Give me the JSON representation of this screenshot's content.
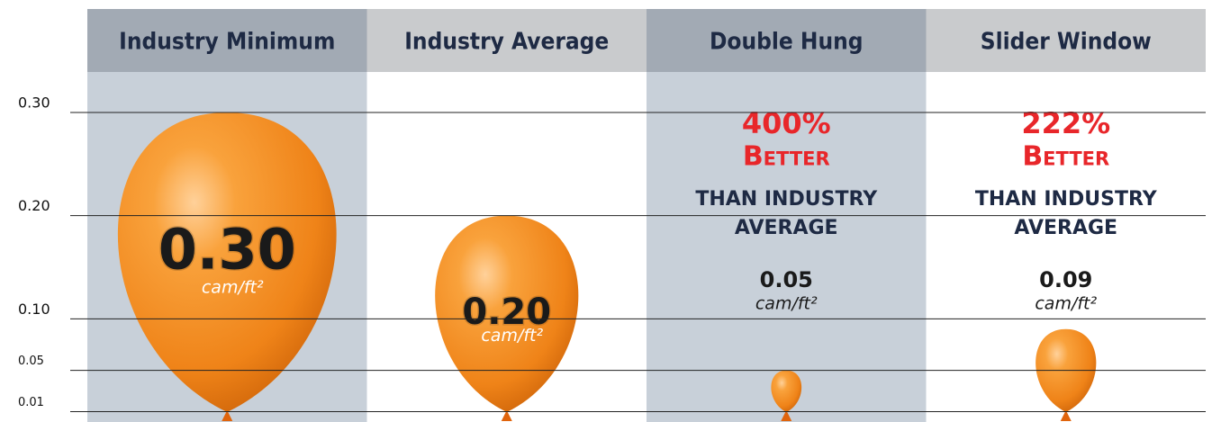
{
  "chart_data": {
    "type": "balloon",
    "categories": [
      "Industry Minimum",
      "Industry Average",
      "Double Hung",
      "Slider Window"
    ],
    "values": [
      0.3,
      0.2,
      0.05,
      0.09
    ],
    "value_labels": [
      "0.30",
      "0.20",
      "0.05",
      "0.09"
    ],
    "unit": "cam/ft²",
    "color": "#f28a1e",
    "ylim": [
      0,
      0.3
    ],
    "yticks": [
      {
        "value": 0.3,
        "label": "0.30"
      },
      {
        "value": 0.2,
        "label": "0.20"
      },
      {
        "value": 0.1,
        "label": "0.10"
      },
      0.05,
      0.01
    ],
    "grid": true,
    "annotations": [
      {
        "percent": "400%",
        "word": "Better",
        "note": [
          "THAN INDUSTRY",
          "AVERAGE"
        ]
      },
      {
        "percent": "222%",
        "word": "Better",
        "note": [
          "THAN INDUSTRY",
          "AVERAGE"
        ]
      }
    ]
  }
}
